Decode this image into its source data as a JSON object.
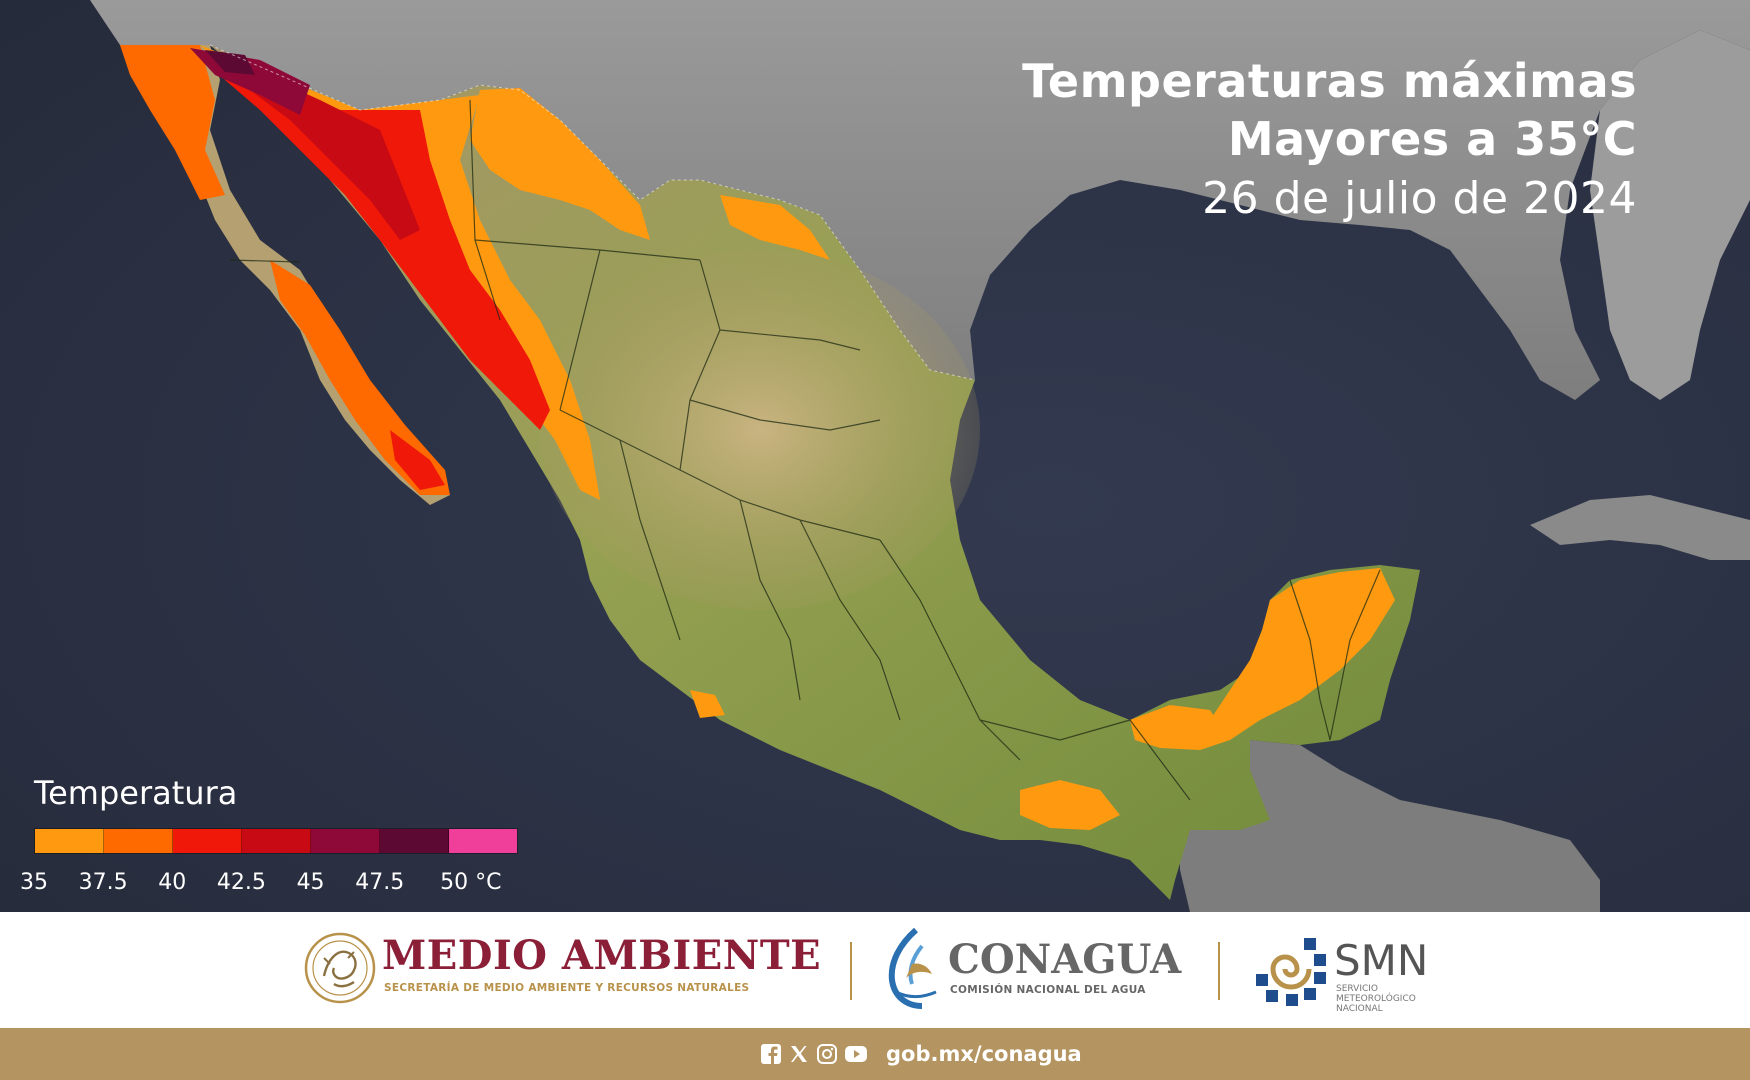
{
  "title": {
    "line1": "Temperaturas máximas",
    "line2": "Mayores a 35°C",
    "line3": "26 de julio de 2024"
  },
  "legend": {
    "title": "Temperatura",
    "ticks": [
      "35",
      "37.5",
      "40",
      "42.5",
      "45",
      "47.5",
      "50 °C"
    ],
    "colors": [
      "#ff9a10",
      "#ff6a00",
      "#f01808",
      "#c80a14",
      "#8e0838",
      "#5c0a34",
      "#ef3f9a"
    ]
  },
  "map": {
    "region": "México",
    "colors": {
      "ocean": "#2a3042",
      "land_us": "#8b8b8b",
      "land_mx": "#8c9b4c",
      "plateau": "#b8a16c",
      "heat_35": "#ff9a10",
      "heat_40": "#f01808",
      "heat_45": "#8e0838"
    }
  },
  "logos": {
    "medio_ambiente": {
      "name": "MEDIO AMBIENTE",
      "subtitle": "SECRETARÍA DE MEDIO AMBIENTE Y RECURSOS NATURALES",
      "seal_icon": "mexico-eagle-seal-icon"
    },
    "conagua": {
      "name": "CONAGUA",
      "subtitle": "COMISIÓN NACIONAL DEL AGUA",
      "icon": "conagua-water-icon"
    },
    "smn": {
      "name": "SMN",
      "subtitle": "Servicio Meteorológico Nacional",
      "icon": "smn-swirl-icon"
    }
  },
  "footer": {
    "url": "gob.mx/conagua",
    "social_icons": [
      "facebook-icon",
      "x-icon",
      "instagram-icon",
      "youtube-icon"
    ],
    "color": "#b49561"
  }
}
